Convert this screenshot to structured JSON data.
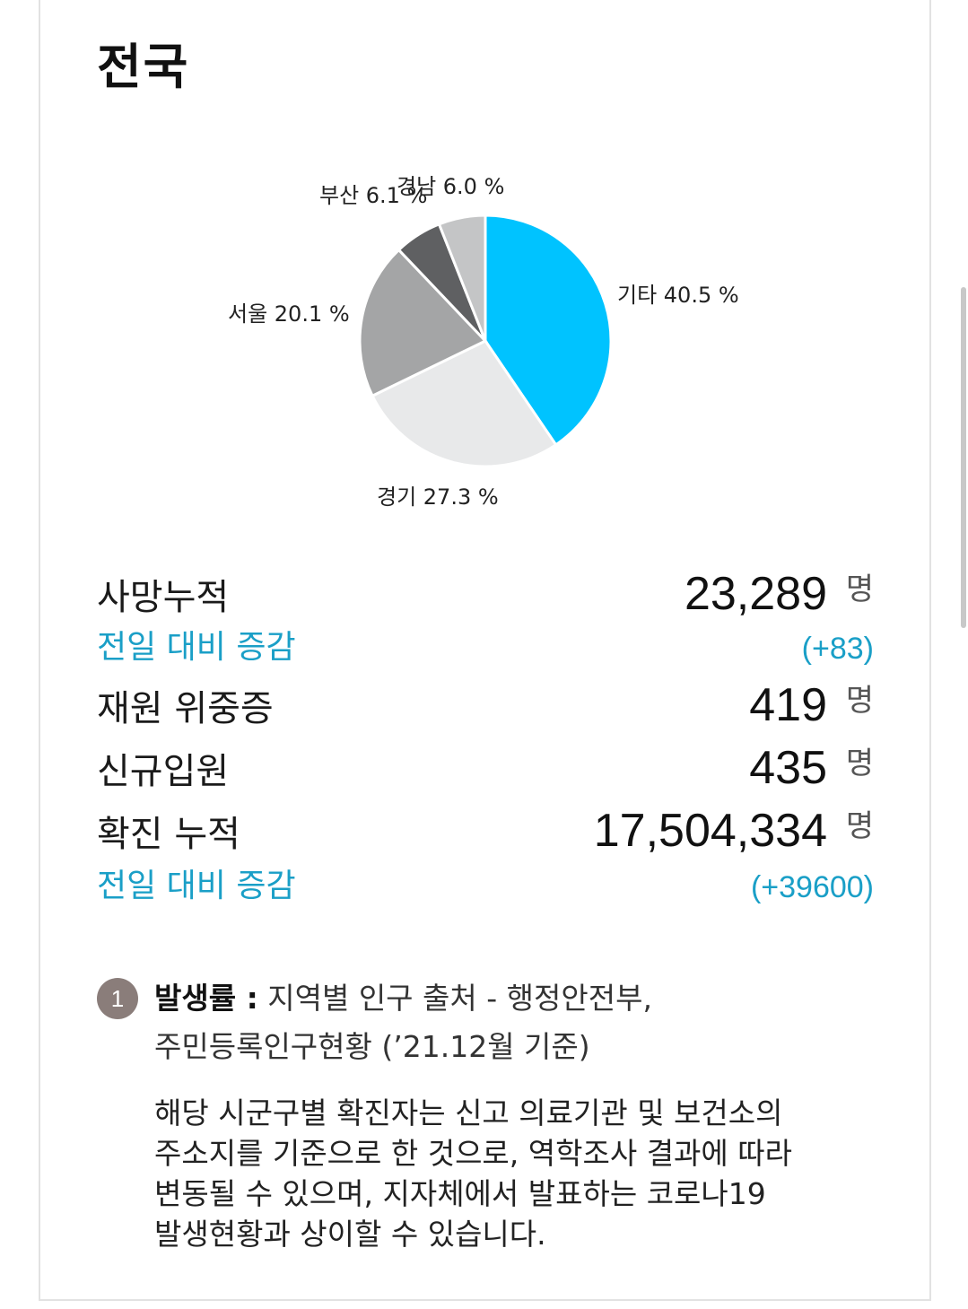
{
  "page": {
    "title": "전국"
  },
  "chart_data": {
    "type": "pie",
    "slices": [
      {
        "label": "기타 40.5 %",
        "name": "기타",
        "value": 40.5,
        "color": "#00c3ff"
      },
      {
        "label": "경기 27.3 %",
        "name": "경기",
        "value": 27.3,
        "color": "#e8e9ea"
      },
      {
        "label": "서울 20.1 %",
        "name": "서울",
        "value": 20.1,
        "color": "#a4a5a6"
      },
      {
        "label": "부산 6.1 %",
        "name": "부산",
        "value": 6.1,
        "color": "#5f6062"
      },
      {
        "label": "경남 6.0 %",
        "name": "경남",
        "value": 6.0,
        "color": "#c4c5c6"
      }
    ]
  },
  "stats": {
    "deaths": {
      "label": "사망누적",
      "value": "23,289",
      "unit": "명"
    },
    "deaths_delta": {
      "label": "전일 대비 증감",
      "value": "(+83)"
    },
    "critical": {
      "label": "재원 위중증",
      "value": "419",
      "unit": "명"
    },
    "admissions": {
      "label": "신규입원",
      "value": "435",
      "unit": "명"
    },
    "confirmed": {
      "label": "확진 누적",
      "value": "17,504,334",
      "unit": "명"
    },
    "confirmed_delta": {
      "label": "전일 대비 증감",
      "value": "(+39600)"
    }
  },
  "note": {
    "number": "1",
    "bold": "발생률 :",
    "line1": " 지역별 인구 출처 - 행정안전부,",
    "line2": "주민등록인구현황 (’21.12월 기준)",
    "paragraph": [
      "해당 시군구별 확진자는 신고 의료기관 및 보건소의",
      "주소지를 기준으로 한 것으로, 역학조사 결과에 따라",
      "변동될 수 있으며, 지자체에서 발표하는 코로나19",
      "발생현황과 상이할 수 있습니다."
    ]
  }
}
